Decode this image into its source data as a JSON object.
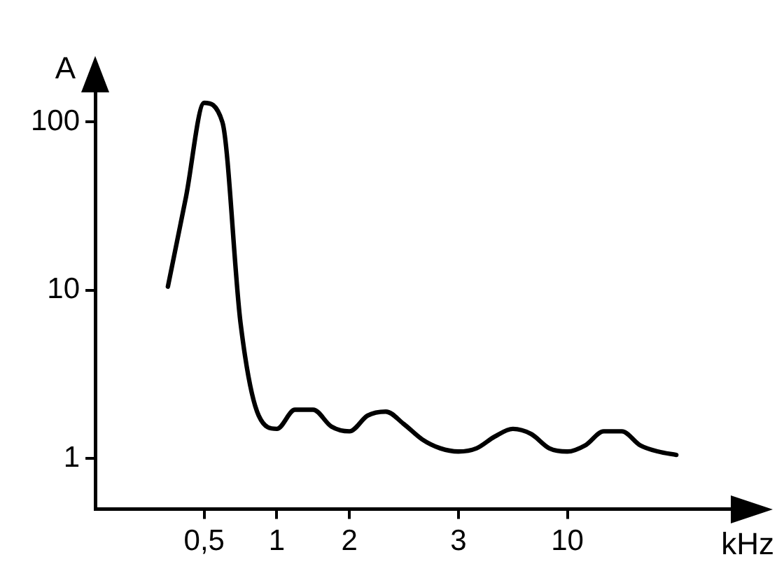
{
  "chart_data": {
    "type": "line",
    "xlabel": "kHz",
    "ylabel": "A",
    "categories": [
      null,
      null,
      null,
      null,
      null,
      null,
      "0,5",
      null,
      null,
      null,
      "1",
      null,
      null,
      null,
      "2",
      null,
      null,
      null,
      null,
      null,
      "3",
      null,
      null,
      null,
      null,
      null,
      "10",
      null,
      null,
      null,
      null,
      null,
      null,
      null,
      null,
      null
    ],
    "series": [
      {
        "color": "#000000",
        "values": [
          null,
          null,
          null,
          null,
          10.5,
          36,
          130,
          100,
          6.4,
          1.8,
          1.5,
          1.95,
          1.95,
          1.55,
          1.45,
          1.8,
          1.9,
          1.6,
          1.3,
          1.15,
          1.1,
          1.15,
          1.35,
          1.5,
          1.4,
          1.15,
          1.1,
          1.2,
          1.45,
          1.45,
          1.2,
          1.1,
          1.05,
          null,
          null,
          null
        ]
      }
    ],
    "ylim": [
      0.5,
      150
    ],
    "yticks": [
      1,
      10,
      100
    ],
    "log": "y",
    "grid": false,
    "legend": false,
    "marker": "none",
    "line_style": "solid"
  }
}
